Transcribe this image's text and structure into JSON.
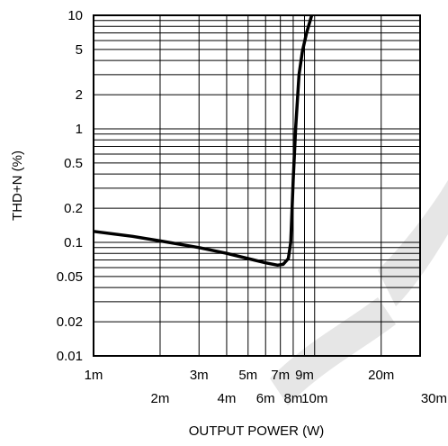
{
  "chart_data": {
    "type": "line",
    "title": "",
    "xlabel": "OUTPUT POWER (W)",
    "ylabel": "THD+N (%)",
    "x_scale": "log",
    "y_scale": "log",
    "xlim": [
      0.001,
      0.03
    ],
    "ylim": [
      0.01,
      10
    ],
    "grid": true,
    "x_ticks": [
      {
        "value": 0.001,
        "label": "1m"
      },
      {
        "value": 0.002,
        "label": "2m"
      },
      {
        "value": 0.003,
        "label": "3m"
      },
      {
        "value": 0.004,
        "label": "4m"
      },
      {
        "value": 0.005,
        "label": "5m"
      },
      {
        "value": 0.006,
        "label": "6m"
      },
      {
        "value": 0.007,
        "label": "7m"
      },
      {
        "value": 0.008,
        "label": "8m"
      },
      {
        "value": 0.009,
        "label": "9m"
      },
      {
        "value": 0.01,
        "label": "10m"
      },
      {
        "value": 0.02,
        "label": "20m"
      },
      {
        "value": 0.03,
        "label": "30m"
      }
    ],
    "y_ticks": [
      {
        "value": 0.01,
        "label": "0.01"
      },
      {
        "value": 0.02,
        "label": "0.02"
      },
      {
        "value": 0.05,
        "label": "0.05"
      },
      {
        "value": 0.1,
        "label": "0.1"
      },
      {
        "value": 0.2,
        "label": "0.2"
      },
      {
        "value": 0.5,
        "label": "0.5"
      },
      {
        "value": 1,
        "label": "1"
      },
      {
        "value": 2,
        "label": "2"
      },
      {
        "value": 5,
        "label": "5"
      },
      {
        "value": 10,
        "label": "10"
      }
    ],
    "series": [
      {
        "x": [
          0.001,
          0.0015,
          0.002,
          0.003,
          0.004,
          0.005,
          0.006,
          0.0068,
          0.0072,
          0.0076,
          0.0078,
          0.008,
          0.0082,
          0.0085,
          0.0088,
          0.0092,
          0.0097
        ],
        "y": [
          0.125,
          0.113,
          0.103,
          0.09,
          0.08,
          0.072,
          0.066,
          0.063,
          0.064,
          0.072,
          0.1,
          0.35,
          1.0,
          3.0,
          4.8,
          7.0,
          10.0
        ]
      }
    ]
  }
}
